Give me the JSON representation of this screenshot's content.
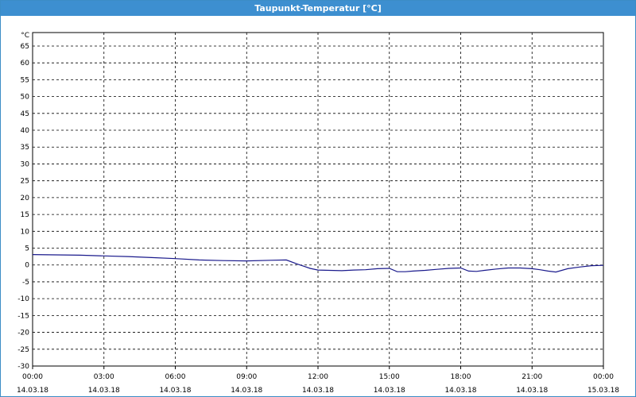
{
  "window": {
    "title": "Taupunkt-Temperatur [°C]"
  },
  "colors": {
    "titlebar": "#3d8fd0",
    "series": "#1a1a8c",
    "grid": "#000000"
  },
  "chart_data": {
    "type": "line",
    "title": "Taupunkt-Temperatur [°C]",
    "y_unit_label": "°C",
    "ylim": [
      -30,
      69
    ],
    "yticks": [
      65,
      60,
      55,
      50,
      45,
      40,
      35,
      30,
      25,
      20,
      15,
      10,
      5,
      0,
      -5,
      -10,
      -15,
      -20,
      -25,
      -30
    ],
    "x_hours_range": [
      0,
      24
    ],
    "xticks": [
      {
        "time": "00:00",
        "date": "14.03.18"
      },
      {
        "time": "03:00",
        "date": "14.03.18"
      },
      {
        "time": "06:00",
        "date": "14.03.18"
      },
      {
        "time": "09:00",
        "date": "14.03.18"
      },
      {
        "time": "12:00",
        "date": "14.03.18"
      },
      {
        "time": "15:00",
        "date": "14.03.18"
      },
      {
        "time": "18:00",
        "date": "14.03.18"
      },
      {
        "time": "21:00",
        "date": "14.03.18"
      },
      {
        "time": "00:00",
        "date": "15.03.18"
      }
    ],
    "grid": true,
    "series": [
      {
        "x": [
          "00:00",
          "01:00",
          "02:00",
          "03:00",
          "04:00",
          "05:00",
          "06:00",
          "07:00",
          "08:00",
          "09:00",
          "10:00",
          "10:40",
          "11:10",
          "11:40",
          "12:00",
          "12:30",
          "13:00",
          "13:30",
          "14:00",
          "14:30",
          "15:00",
          "15:20",
          "15:40",
          "16:00",
          "16:30",
          "17:00",
          "17:30",
          "18:00",
          "18:20",
          "18:40",
          "19:00",
          "19:30",
          "20:00",
          "20:30",
          "21:00",
          "21:20",
          "21:40",
          "22:00",
          "22:30",
          "23:00",
          "23:30",
          "24:00"
        ],
        "values": [
          3.1,
          3.0,
          2.9,
          2.7,
          2.5,
          2.2,
          1.9,
          1.5,
          1.3,
          1.2,
          1.4,
          1.5,
          0.2,
          -1.0,
          -1.5,
          -1.6,
          -1.7,
          -1.5,
          -1.4,
          -1.1,
          -1.0,
          -2.0,
          -2.0,
          -1.8,
          -1.6,
          -1.3,
          -1.0,
          -0.9,
          -1.8,
          -1.9,
          -1.6,
          -1.2,
          -0.9,
          -0.9,
          -1.1,
          -1.4,
          -1.8,
          -2.1,
          -1.1,
          -0.6,
          -0.2,
          -0.1
        ]
      }
    ]
  }
}
